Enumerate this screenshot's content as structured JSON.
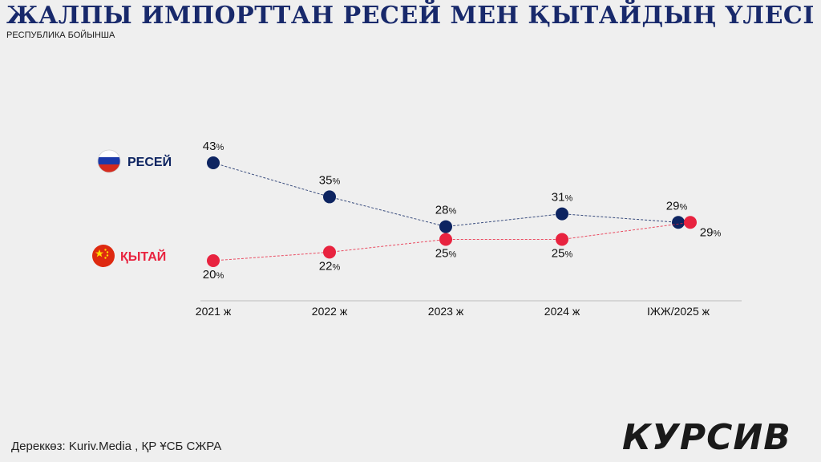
{
  "header": {
    "title": "ЖАЛПЫ ИМПОРТТАН РЕСЕЙ МЕН ҚЫТАЙДЫҢ ҮЛЕСІ",
    "subtitle": "РЕСПУБЛИКА БОЙЫНША"
  },
  "footer": {
    "source": "Дереккөз: Kuriv.Media , ҚР ҰСБ СЖРА",
    "brand": "КУРСИВ"
  },
  "chart_data": {
    "type": "line",
    "title": "ЖАЛПЫ ИМПОРТТАН РЕСЕЙ МЕН ҚЫТАЙДЫҢ ҮЛЕСІ",
    "subtitle": "РЕСПУБЛИКА БОЙЫНША",
    "categories": [
      "2021 ж",
      "2022 ж",
      "2023 ж",
      "2024 ж",
      "ІЖЖ/2025 ж"
    ],
    "unit": "%",
    "ylim": [
      15,
      45
    ],
    "grid": false,
    "legend_position": "left",
    "series": [
      {
        "name": "РЕСЕЙ",
        "values": [
          43,
          35,
          28,
          31,
          29
        ],
        "color": "#0d2461",
        "line_style": "dashed",
        "flag": "russia-flag-icon"
      },
      {
        "name": "ҚЫТАЙ",
        "values": [
          20,
          22,
          25,
          25,
          29
        ],
        "color": "#e8233f",
        "line_style": "dashed",
        "flag": "china-flag-icon"
      }
    ]
  }
}
